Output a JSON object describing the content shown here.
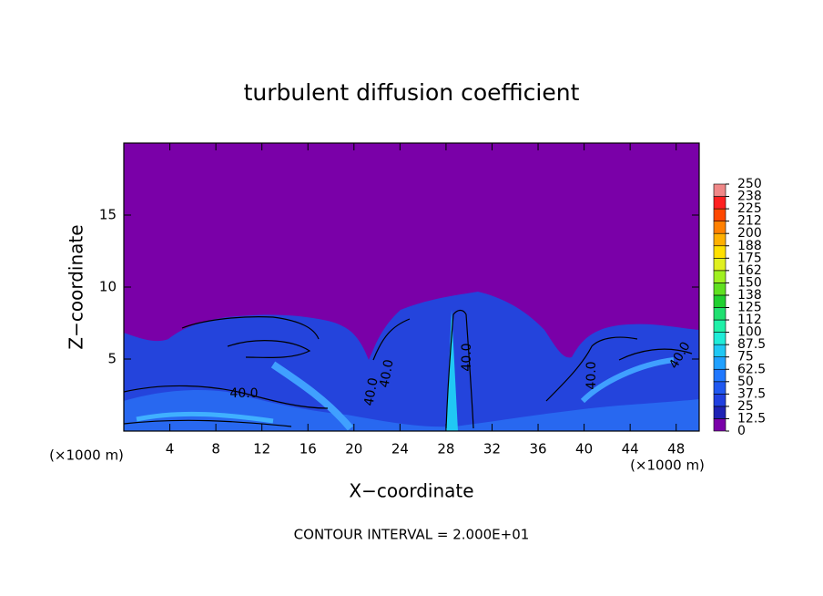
{
  "chart_data": {
    "type": "contour",
    "title": "turbulent diffusion coefficient",
    "x_label": "X−coordinate",
    "y_label": "Z−coordinate",
    "x_unit_labels": [
      "(×1000 m)",
      "(×1000 m)"
    ],
    "footnote": "CONTOUR INTERVAL = 2.000E+01",
    "xlim": [
      0,
      50
    ],
    "ylim": [
      0,
      20
    ],
    "xticks": [
      4,
      8,
      12,
      16,
      20,
      24,
      28,
      32,
      36,
      40,
      44,
      48
    ],
    "yticks": [
      5,
      10,
      15
    ],
    "contour_labels": [
      "40.0",
      "40.0",
      "40.0",
      "40.0",
      "40.0",
      "40.0"
    ],
    "colorbar": {
      "levels": [
        0,
        12.5,
        25,
        37.5,
        50,
        62.5,
        75,
        87.5,
        100,
        {
          "value": 112.5,
          "label": "112"
        },
        125,
        {
          "value": 137.5,
          "label": "138"
        },
        150,
        {
          "value": 162.5,
          "label": "162"
        },
        175,
        {
          "value": 187.5,
          "label": "188"
        },
        200,
        {
          "value": 212.5,
          "label": "212"
        },
        225,
        {
          "value": 237.5,
          "label": "238"
        },
        250
      ],
      "colors": [
        "#7a00a8",
        "#1e22b4",
        "#2040e0",
        "#2058f0",
        "#2078ff",
        "#20a0ff",
        "#20c8f4",
        "#20ecd8",
        "#20f0a8",
        "#20e070",
        "#20d030",
        "#60e020",
        "#a0f020",
        "#e0f020",
        "#ffe000",
        "#ffb000",
        "#ff8000",
        "#ff4800",
        "#ff2020",
        "#f08888"
      ]
    }
  }
}
